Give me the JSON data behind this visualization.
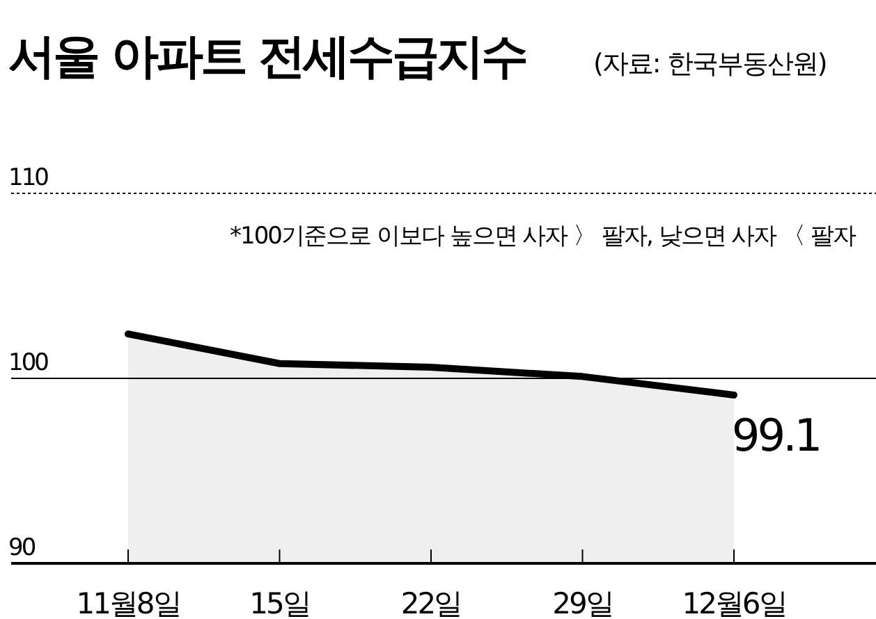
{
  "chart_data": {
    "type": "area",
    "title": "서울 아파트 전세수급지수",
    "subtitle": "(자료: 한국부동산원)",
    "annotations": [
      "*100기준으로 이보다 높으면 사자 〉 팔자, 낮으면 사자 〈 팔자"
    ],
    "categories": [
      "11월8일",
      "15일",
      "22일",
      "29일",
      "12월6일"
    ],
    "series": [
      {
        "color": "#000000",
        "values": [
          102.4,
          100.8,
          100.6,
          100.1,
          99.1
        ],
        "value_labels": [
          null,
          null,
          null,
          null,
          "99.1"
        ]
      }
    ],
    "ylim": [
      90,
      110
    ],
    "yticks": [
      90,
      100,
      110
    ],
    "grid": "y"
  }
}
